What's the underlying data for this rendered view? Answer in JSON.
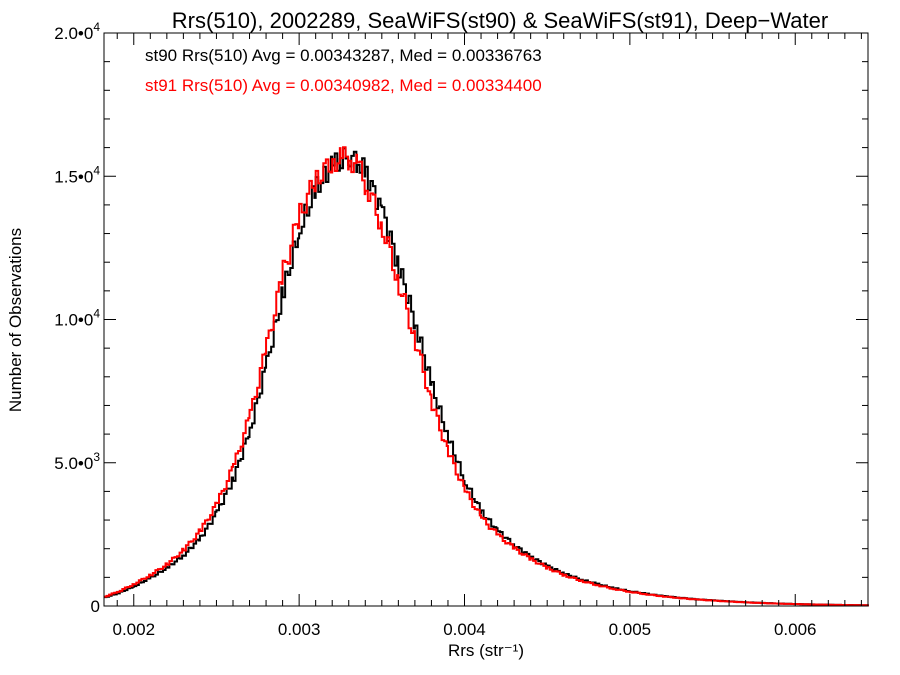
{
  "chart_data": {
    "type": "line",
    "step": true,
    "title": "Rrs(510), 2002289, SeaWiFS(st90) & SeaWiFS(st91), Deep−Water",
    "xlabel": "Rrs (str⁻¹)",
    "ylabel": "Number of Observations",
    "xlim": [
      0.00182,
      0.00644
    ],
    "ylim": [
      0,
      20000
    ],
    "x_ticks": [
      {
        "value": 0.002,
        "label": "0.002"
      },
      {
        "value": 0.003,
        "label": "0.003"
      },
      {
        "value": 0.004,
        "label": "0.004"
      },
      {
        "value": 0.005,
        "label": "0.005"
      },
      {
        "value": 0.006,
        "label": "0.006"
      }
    ],
    "y_ticks": [
      {
        "value": 0,
        "mant": "0",
        "exp": ""
      },
      {
        "value": 5000,
        "mant": "5.0•0",
        "exp": "3"
      },
      {
        "value": 10000,
        "mant": "1.0•0",
        "exp": "4"
      },
      {
        "value": 15000,
        "mant": "1.5•0",
        "exp": "4"
      },
      {
        "value": 20000,
        "mant": "2.0•0",
        "exp": "4"
      }
    ],
    "grid": false,
    "legend_position": "top-left",
    "series": [
      {
        "legend": "st90 Rrs(510) Avg = 0.00343287, Med = 0.00336763",
        "color": "#000000",
        "x": [
          0.00182,
          0.0019,
          0.002,
          0.0021,
          0.0022,
          0.0023,
          0.0024,
          0.0025,
          0.0026,
          0.0027,
          0.0028,
          0.0029,
          0.003,
          0.0031,
          0.0032,
          0.00325,
          0.0033,
          0.00335,
          0.0034,
          0.0035,
          0.0036,
          0.0037,
          0.0038,
          0.0039,
          0.004,
          0.0041,
          0.0042,
          0.0043,
          0.0044,
          0.0045,
          0.0046,
          0.0047,
          0.0048,
          0.0049,
          0.005,
          0.0051,
          0.0052,
          0.0053,
          0.0054,
          0.0055,
          0.0056,
          0.0057,
          0.0058,
          0.0059,
          0.006,
          0.0061,
          0.0062,
          0.0063,
          0.00644
        ],
        "y": [
          300,
          450,
          700,
          1000,
          1350,
          1800,
          2400,
          3300,
          4500,
          6200,
          8500,
          11000,
          13200,
          14600,
          15400,
          15600,
          15700,
          15500,
          15100,
          13700,
          11800,
          9800,
          7600,
          5800,
          4300,
          3250,
          2600,
          2100,
          1700,
          1380,
          1120,
          920,
          760,
          620,
          510,
          420,
          345,
          285,
          235,
          195,
          160,
          130,
          105,
          85,
          70,
          55,
          45,
          35,
          25
        ]
      },
      {
        "legend": "st91 Rrs(510) Avg = 0.00340982, Med = 0.00334400",
        "color": "#ff0000",
        "x": [
          0.00182,
          0.0019,
          0.002,
          0.0021,
          0.0022,
          0.0023,
          0.0024,
          0.0025,
          0.0026,
          0.0027,
          0.0028,
          0.0029,
          0.003,
          0.0031,
          0.0032,
          0.00325,
          0.0033,
          0.00335,
          0.0034,
          0.0035,
          0.0036,
          0.0037,
          0.0038,
          0.0039,
          0.004,
          0.0041,
          0.0042,
          0.0043,
          0.0044,
          0.0045,
          0.0046,
          0.0047,
          0.0048,
          0.0049,
          0.005,
          0.0051,
          0.0052,
          0.0053,
          0.0054,
          0.0055,
          0.0056,
          0.0057,
          0.0058,
          0.0059,
          0.006,
          0.0061,
          0.0062,
          0.0063,
          0.00644
        ],
        "y": [
          330,
          500,
          780,
          1100,
          1480,
          1980,
          2650,
          3600,
          4900,
          6700,
          9100,
          11700,
          13700,
          14950,
          15500,
          15650,
          15600,
          15350,
          14700,
          13200,
          11200,
          9200,
          7000,
          5300,
          4000,
          3050,
          2450,
          1990,
          1620,
          1320,
          1070,
          880,
          725,
          595,
          490,
          405,
          332,
          273,
          226,
          187,
          153,
          125,
          101,
          82,
          67,
          53,
          43,
          33,
          23
        ]
      }
    ]
  }
}
